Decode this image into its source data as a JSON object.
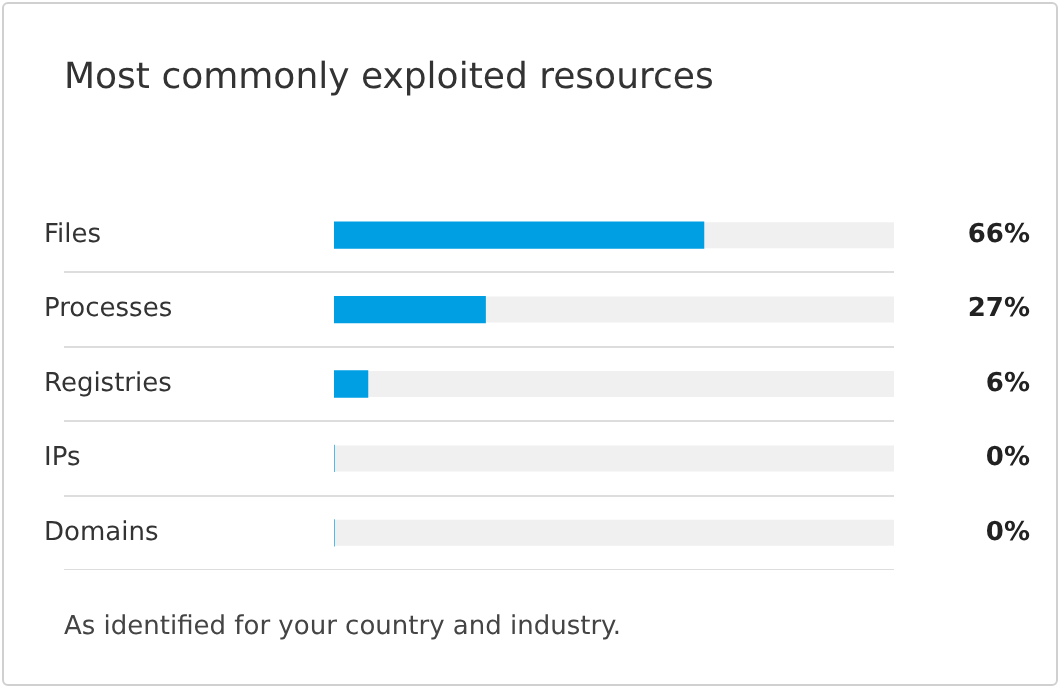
{
  "chart_data": {
    "type": "bar",
    "orientation": "horizontal",
    "title": "Most commonly exploited resources",
    "categories": [
      "Files",
      "Processes",
      "Registries",
      "IPs",
      "Domains"
    ],
    "values": [
      66,
      27,
      6,
      0,
      0
    ],
    "color": "#009fe3",
    "value_labels": [
      "66%",
      "27%",
      "6%",
      "0%",
      "0%"
    ],
    "xlim": [
      0,
      100
    ],
    "tick_labels": "y",
    "grid": "y",
    "legend": false,
    "annotations": [
      "As identified for your country and industry."
    ]
  }
}
